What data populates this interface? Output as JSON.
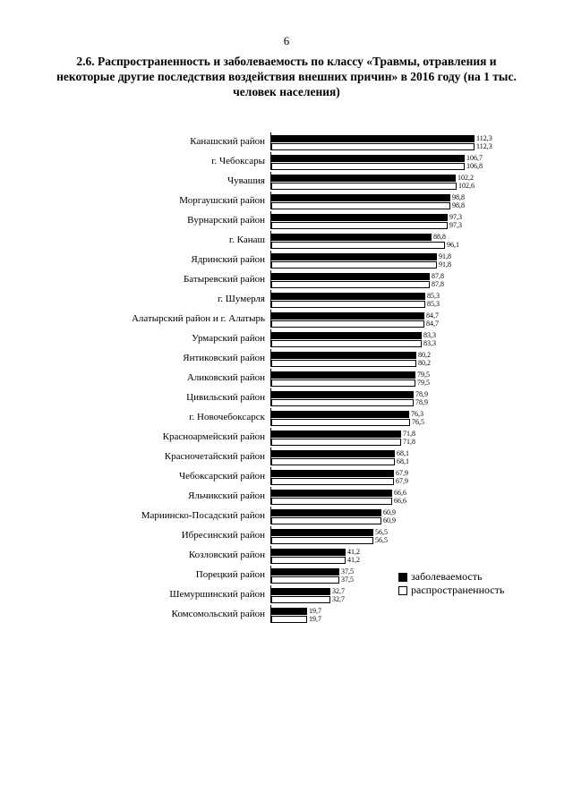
{
  "page": {
    "number": "6"
  },
  "title": {
    "text": "2.6. Распространенность и заболеваемость по классу «Травмы, отравления и некоторые другие последствия воздействия внешних причин» в 2016 году (на 1 тыс. человек населения)"
  },
  "colors": {
    "zabolevaemost": "#000000",
    "rasprostranennost": "#ffffff",
    "text": "#000000"
  },
  "chart_data": {
    "type": "bar",
    "orientation": "horizontal",
    "title": "2.6. Распространенность и заболеваемость по классу «Травмы, отравления и некоторые другие последствия воздействия внешних причин» в 2016 году (на 1 тыс. человек населения)",
    "xlabel": "",
    "ylabel": "",
    "xlim": [
      0,
      120
    ],
    "legend_position": "right-bottom",
    "grid": false,
    "categories": [
      "Канашский район",
      "г. Чебоксары",
      "Чувашия",
      "Моргаушский район",
      "Вурнарский район",
      "г. Канаш",
      "Ядринский район",
      "Батыревский район",
      "г. Шумерля",
      "Алатырский район и г. Алатырь",
      "Урмарский район",
      "Янтиковский район",
      "Аликовский район",
      "Цивильский район",
      "г. Новочебоксарск",
      "Красноармейский район",
      "Красночетайский район",
      "Чебоксарский район",
      "Яльчикский район",
      "Мариинско-Посадский район",
      "Ибресинский район",
      "Козловский район",
      "Порецкий район",
      "Шемуршинский район",
      "Комсомольский район"
    ],
    "series": [
      {
        "name": "заболеваемость",
        "color": "#000000",
        "values": [
          "112,3",
          "106,7",
          "102,2",
          "98,8",
          "97,3",
          "88,8",
          "91,8",
          "87,8",
          "85,3",
          "84,7",
          "83,3",
          "80,2",
          "79,5",
          "78,9",
          "76,3",
          "71,8",
          "68,1",
          "67,9",
          "66,6",
          "60,9",
          "56,5",
          "41,2",
          "37,5",
          "32,7",
          "19,7"
        ]
      },
      {
        "name": "распространенность",
        "color": "#ffffff",
        "values": [
          "112,3",
          "106,8",
          "102,6",
          "98,8",
          "97,3",
          "96,1",
          "91,8",
          "87,8",
          "85,3",
          "84,7",
          "83,3",
          "80,2",
          "79,5",
          "78,9",
          "76,5",
          "71,8",
          "68,1",
          "67,9",
          "66,6",
          "60,9",
          "56,5",
          "41,2",
          "37,5",
          "32,7",
          "19,7"
        ]
      }
    ]
  }
}
